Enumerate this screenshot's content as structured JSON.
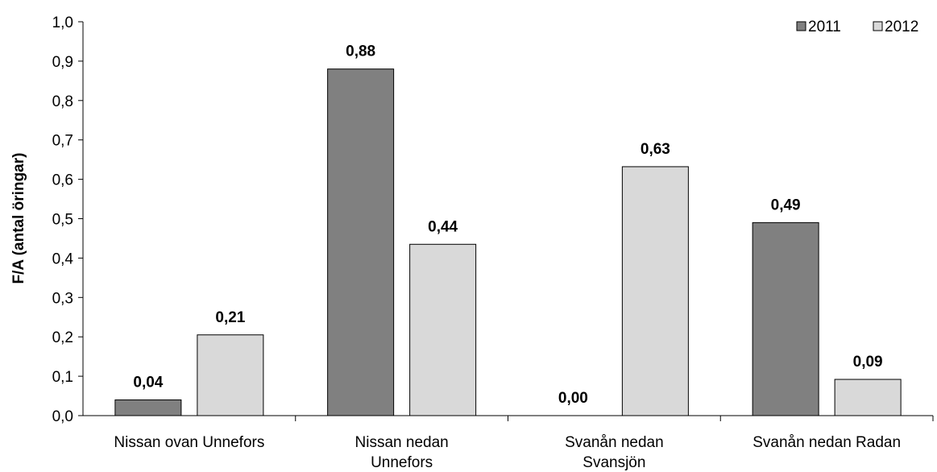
{
  "chart_data": {
    "type": "bar",
    "title": "",
    "xlabel": "",
    "ylabel": "F/A (antal öringar)",
    "ylim": [
      0,
      1.0
    ],
    "yticks": [
      "0,0",
      "0,1",
      "0,2",
      "0,3",
      "0,4",
      "0,5",
      "0,6",
      "0,7",
      "0,8",
      "0,9",
      "1,0"
    ],
    "grid": false,
    "legend_position": "top-right",
    "categories": [
      [
        "Nissan ovan Unnefors"
      ],
      [
        "Nissan nedan",
        "Unnefors"
      ],
      [
        "Svanån nedan",
        "Svansjön"
      ],
      [
        "Svanån nedan Radan"
      ]
    ],
    "series": [
      {
        "name": "2011",
        "color": "#808080",
        "values": [
          0.04,
          0.88,
          0.0,
          0.49
        ],
        "labels": [
          "0,04",
          "0,88",
          "0,00",
          "0,49"
        ]
      },
      {
        "name": "2012",
        "color": "#d9d9d9",
        "values": [
          0.205,
          0.435,
          0.632,
          0.092
        ],
        "labels": [
          "0,21",
          "0,44",
          "0,63",
          "0,09"
        ]
      }
    ]
  }
}
